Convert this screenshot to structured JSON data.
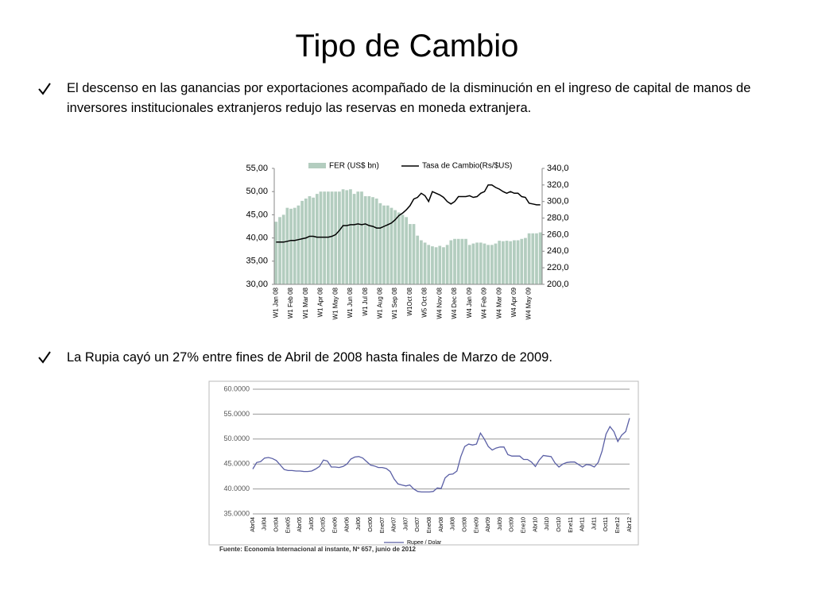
{
  "title": "Tipo de Cambio",
  "bullets": [
    "El descenso en las ganancias por exportaciones acompañado de la disminución en el ingreso de capital de manos de inversores institucionales extranjeros redujo las reservas en moneda extranjera.",
    "La Rupia cayó un 27% entre fines de Abril de 2008 hasta finales de Marzo de 2009."
  ],
  "chart_data": [
    {
      "type": "bar",
      "categories": [
        "W1 Jan 08",
        null,
        null,
        null,
        "W1 Feb 08",
        null,
        null,
        null,
        "W1 Mar 08",
        null,
        null,
        null,
        "W1 Apr 08",
        null,
        null,
        null,
        "W1 May 08",
        null,
        null,
        null,
        "W1 Jun 08",
        null,
        null,
        null,
        "W1 Jul 08",
        null,
        null,
        null,
        "W1 Aug 08",
        null,
        null,
        null,
        "W1 Sep 08",
        null,
        null,
        null,
        "W1Oct 08",
        null,
        null,
        null,
        "W5 Oct 08",
        null,
        null,
        null,
        "W4 Nov 08",
        null,
        null,
        null,
        "W4 Dec 08",
        null,
        null,
        null,
        "W4 Jan 09",
        null,
        null,
        null,
        "W4 Feb 09",
        null,
        null,
        null,
        "W4 Mar 09",
        null,
        null,
        null,
        "W4 Apr 09",
        null,
        null,
        null,
        "W4 May 09",
        null,
        null,
        null
      ],
      "series": [
        {
          "name": "FER (US$ bn)",
          "type": "bar",
          "color": "#b3cdbf",
          "values": [
            43.5,
            44.5,
            45,
            46.5,
            46.3,
            46.5,
            47,
            48,
            48.5,
            49,
            48.7,
            49.5,
            50,
            50,
            50,
            50,
            50,
            50,
            50.5,
            50.3,
            50.5,
            49.5,
            50,
            50,
            49,
            49,
            48.8,
            48.5,
            47.5,
            47,
            47,
            46.5,
            46,
            45.5,
            45,
            44.5,
            43,
            43,
            40.5,
            39.5,
            39,
            38.5,
            38.2,
            38,
            38.3,
            38,
            38.5,
            39.5,
            39.8,
            39.8,
            39.8,
            39.8,
            38.5,
            38.8,
            39,
            39,
            38.8,
            38.5,
            38.5,
            38.8,
            39.4,
            39.3,
            39.4,
            39.3,
            39.5,
            39.5,
            39.8,
            40,
            41,
            41,
            41,
            41.2
          ]
        },
        {
          "name": "Tasa de Cambio(Rs/$US)",
          "type": "line",
          "color": "#000000",
          "axis": "y2",
          "values": [
            251,
            251,
            251,
            252,
            253,
            253,
            254,
            255,
            256,
            258,
            258,
            257,
            257,
            257,
            257,
            258,
            260,
            265,
            271,
            271,
            272,
            272,
            273,
            272,
            273,
            271,
            270,
            268,
            268,
            270,
            272,
            274,
            278,
            283,
            286,
            290,
            295,
            303,
            305,
            310,
            307,
            300,
            312,
            310,
            308,
            305,
            300,
            297,
            300,
            306,
            306,
            306,
            307,
            305,
            306,
            310,
            312,
            320,
            320,
            317,
            315,
            312,
            310,
            312,
            310,
            310,
            306,
            305,
            298,
            297,
            296,
            296
          ]
        }
      ],
      "ylim": [
        30,
        55
      ],
      "yticks": [
        {
          "value": 30,
          "label": "30,00"
        },
        {
          "value": 35,
          "label": "35,00"
        },
        {
          "value": 40,
          "label": "40,00"
        },
        {
          "value": 45,
          "label": "45,00"
        },
        {
          "value": 50,
          "label": "50,00"
        },
        {
          "value": 55,
          "label": "55,00"
        }
      ],
      "y2lim": [
        200,
        340
      ],
      "y2ticks": [
        {
          "value": 200,
          "label": "200,0"
        },
        {
          "value": 220,
          "label": "220,0"
        },
        {
          "value": 240,
          "label": "240,0"
        },
        {
          "value": 260,
          "label": "260,0"
        },
        {
          "value": 280,
          "label": "280,0"
        },
        {
          "value": 300,
          "label": "300,0"
        },
        {
          "value": 320,
          "label": "320,0"
        },
        {
          "value": 340,
          "label": "340,0"
        }
      ]
    },
    {
      "type": "line",
      "categories": [
        "Abr04",
        null,
        null,
        "Jul04",
        null,
        null,
        "Oct04",
        null,
        null,
        "Ene05",
        null,
        null,
        "Abr05",
        null,
        null,
        "Jul05",
        null,
        null,
        "Oct05",
        null,
        null,
        "Ene06",
        null,
        null,
        "Abr06",
        null,
        null,
        "Jul06",
        null,
        null,
        "Oct06",
        null,
        null,
        "Ene07",
        null,
        null,
        "Abr07",
        null,
        null,
        "Jul07",
        null,
        null,
        "Oct07",
        null,
        null,
        "Ene08",
        null,
        null,
        "Abr08",
        null,
        null,
        "Jul08",
        null,
        null,
        "Oct08",
        null,
        null,
        "Ene09",
        null,
        null,
        "Abr09",
        null,
        null,
        "Jul09",
        null,
        null,
        "Oct09",
        null,
        null,
        "Ene10",
        null,
        null,
        "Abr10",
        null,
        null,
        "Jul10",
        null,
        null,
        "Oct10",
        null,
        null,
        "Ene11",
        null,
        null,
        "Abr11",
        null,
        null,
        "Jul11",
        null,
        null,
        "Oct11",
        null,
        null,
        "Ene12",
        null,
        null,
        "Abr12"
      ],
      "series": [
        {
          "name": "Rupee / Dolar",
          "color": "#5a5fa5",
          "values": [
            44.0,
            45.3,
            45.5,
            46.2,
            46.3,
            46.1,
            45.7,
            44.8,
            43.9,
            43.7,
            43.7,
            43.6,
            43.6,
            43.5,
            43.5,
            43.6,
            44.0,
            44.5,
            45.8,
            45.6,
            44.4,
            44.4,
            44.3,
            44.5,
            45,
            46,
            46.4,
            46.5,
            46.2,
            45.5,
            44.8,
            44.6,
            44.3,
            44.3,
            44.1,
            43.5,
            42,
            41,
            40.8,
            40.6,
            40.8,
            40,
            39.5,
            39.4,
            39.4,
            39.4,
            39.5,
            40.2,
            40.1,
            42.2,
            42.9,
            43,
            43.6,
            46.5,
            48.5,
            49,
            48.8,
            49,
            51.2,
            50,
            48.5,
            47.8,
            48.2,
            48.4,
            48.4,
            46.9,
            46.6,
            46.6,
            46.6,
            45.9,
            45.9,
            45.4,
            44.5,
            45.8,
            46.7,
            46.6,
            46.5,
            45.2,
            44.4,
            45,
            45.3,
            45.4,
            45.4,
            44.9,
            44.4,
            44.9,
            44.8,
            44.4,
            45.3,
            47.6,
            51,
            52.5,
            51.5,
            49.5,
            50.8,
            51.5,
            54.2
          ]
        }
      ],
      "ylim": [
        35,
        60
      ],
      "yticks": [
        {
          "value": 35,
          "label": "35.0000"
        },
        {
          "value": 40,
          "label": "40.0000"
        },
        {
          "value": 45,
          "label": "45.0000"
        },
        {
          "value": 50,
          "label": "50.0000"
        },
        {
          "value": 55,
          "label": "55.0000"
        },
        {
          "value": 60,
          "label": "60.0000"
        }
      ],
      "grid": true,
      "source": "Fuente: Economía Internacional al instante, Nº 657, junio de 2012"
    }
  ]
}
